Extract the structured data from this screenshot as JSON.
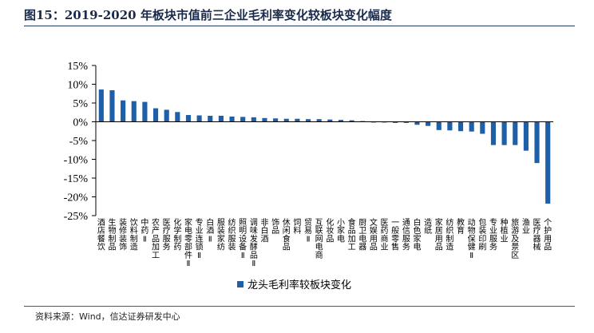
{
  "header": {
    "title": "图15：2019-2020 年板块市值前三企业毛利率变化较板块变化幅度"
  },
  "footer": {
    "source": "资料来源：Wind，信达证券研发中心"
  },
  "chart_data": {
    "type": "bar",
    "title": "图15：2019-2020 年板块市值前三企业毛利率变化较板块变化幅度",
    "xlabel": "",
    "ylabel": "",
    "ylim": [
      -25,
      15
    ],
    "yticks": [
      15,
      10,
      5,
      0,
      -5,
      -10,
      -15,
      -20,
      -25
    ],
    "ytick_labels": [
      "15%",
      "10%",
      "5%",
      "0%",
      "-5%",
      "-10%",
      "-15%",
      "-20%",
      "-25%"
    ],
    "legend_position": "bottom-left",
    "grid": false,
    "bar_color": "#1f5fa8",
    "categories": [
      "酒店餐饮",
      "生物制品",
      "装修装饰",
      "饮料制造",
      "中药Ⅱ",
      "农产品加工",
      "医疗服务",
      "化学制药",
      "家电零部件Ⅱ",
      "专业连锁Ⅱ",
      "白酒Ⅱ",
      "服装家纺",
      "纺织服装",
      "照明设备Ⅱ",
      "调味发酵品Ⅱ",
      "非白酒",
      "饰品",
      "休闲食品",
      "饲料",
      "贸易Ⅱ",
      "互联网电商",
      "化妆品",
      "小家电",
      "食品加工",
      "厨卫电器",
      "文娱用品",
      "医药商业",
      "一般零售",
      "通信服务",
      "白色家电",
      "造纸",
      "家居用品",
      "纺织制造",
      "教育",
      "动物保健Ⅱ",
      "包装印刷",
      "专业服务",
      "种植业",
      "旅游及景区",
      "渔业",
      "医疗器械",
      "个护用品"
    ],
    "series": [
      {
        "name": "龙头毛利率较板块变化",
        "values": [
          8.6,
          8.4,
          5.7,
          5.5,
          5.3,
          3.6,
          3.2,
          2.6,
          1.8,
          1.7,
          1.6,
          1.6,
          1.4,
          1.3,
          1.2,
          1.0,
          0.9,
          0.8,
          0.8,
          0.7,
          0.7,
          0.6,
          0.5,
          0.4,
          0.2,
          -0.2,
          -0.2,
          -0.3,
          -0.3,
          -0.8,
          -1.1,
          -2.2,
          -2.3,
          -2.5,
          -2.6,
          -3.2,
          -6.2,
          -6.2,
          -6.2,
          -7.7,
          -11.0,
          -21.8
        ]
      }
    ]
  }
}
